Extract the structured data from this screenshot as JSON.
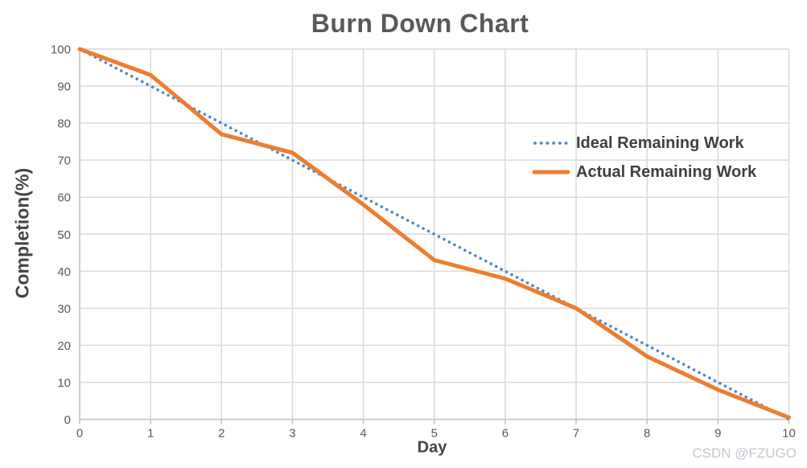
{
  "watermark": "CSDN @FZUGO",
  "colors": {
    "title_text": "#595959",
    "axis_text": "#595959",
    "axis_title_text": "#444444",
    "legend_text": "#404040",
    "gridline": "#d9d9d9",
    "axis_line": "#c3c3c3",
    "ideal_line": "#4f87c7",
    "actual_line": "#ed7d31",
    "watermark_text": "#c2c8d0"
  },
  "chart_data": {
    "type": "line",
    "title": "Burn Down Chart",
    "xlabel": "Day",
    "ylabel": "Completion(%)",
    "x": [
      0,
      1,
      2,
      3,
      4,
      5,
      6,
      7,
      8,
      9,
      10
    ],
    "xlim": [
      0,
      10
    ],
    "ylim": [
      0,
      100
    ],
    "x_ticks": [
      "0",
      "1",
      "2",
      "3",
      "4",
      "5",
      "6",
      "7",
      "8",
      "9",
      "10"
    ],
    "y_ticks": [
      "0",
      "10",
      "20",
      "30",
      "40",
      "50",
      "60",
      "70",
      "80",
      "90",
      "100"
    ],
    "grid": true,
    "legend_position": "inside-right",
    "series": [
      {
        "name": "Ideal Remaining Work",
        "style": "dotted",
        "color": "#4f87c7",
        "values": [
          100,
          90,
          80,
          70,
          60,
          50,
          40,
          30,
          20,
          10,
          0
        ]
      },
      {
        "name": "Actual Remaining Work",
        "style": "solid",
        "color": "#ed7d31",
        "values": [
          100,
          93,
          77,
          72,
          58,
          43,
          38,
          30,
          17,
          8,
          0.5
        ]
      }
    ]
  }
}
